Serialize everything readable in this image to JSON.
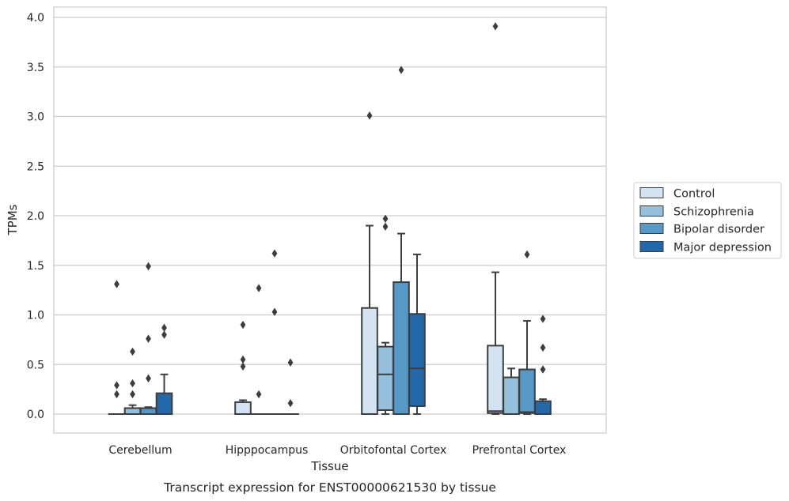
{
  "caption": "Transcript expression for ENST00000621530 by tissue",
  "chart_data": {
    "type": "box",
    "xlabel": "Tissue",
    "ylabel": "TPMs",
    "ylim": [
      -0.19,
      4.11
    ],
    "yticks": [
      "0.0",
      "0.5",
      "1.0",
      "1.5",
      "2.0",
      "2.5",
      "3.0",
      "3.5",
      "4.0"
    ],
    "categories": [
      "Cerebellum",
      "Hipppocampus",
      "Orbitofontal Cortex",
      "Prefrontal Cortex"
    ],
    "grid": "horizontal",
    "legend_position": "right",
    "series": [
      {
        "name": "Control",
        "color": "#d3e3f1",
        "boxes": [
          {
            "whislo": 0,
            "q1": 0,
            "med": 0,
            "q3": 0,
            "whishi": 0,
            "fliers": [
              1.31,
              0.29,
              0.2
            ]
          },
          {
            "whislo": 0,
            "q1": 0,
            "med": 0,
            "q3": 0.12,
            "whishi": 0.14,
            "fliers": [
              0.9,
              0.55,
              0.48
            ]
          },
          {
            "whislo": 0,
            "q1": 0,
            "med": 0,
            "q3": 1.07,
            "whishi": 1.9,
            "fliers": [
              3.01
            ]
          },
          {
            "whislo": 0,
            "q1": 0.01,
            "med": 0.03,
            "q3": 0.69,
            "whishi": 1.43,
            "fliers": [
              3.91
            ]
          }
        ]
      },
      {
        "name": "Schizophrenia",
        "color": "#94c0dd",
        "boxes": [
          {
            "whislo": 0,
            "q1": 0,
            "med": 0,
            "q3": 0.06,
            "whishi": 0.09,
            "fliers": [
              0.63,
              0.31,
              0.2
            ]
          },
          {
            "whislo": 0,
            "q1": 0,
            "med": 0,
            "q3": 0,
            "whishi": 0,
            "fliers": [
              1.27,
              0.2
            ]
          },
          {
            "whislo": 0,
            "q1": 0.04,
            "med": 0.4,
            "q3": 0.68,
            "whishi": 0.72,
            "fliers": [
              1.97,
              1.89
            ]
          },
          {
            "whislo": 0,
            "q1": 0,
            "med": 0,
            "q3": 0.37,
            "whishi": 0.46,
            "fliers": []
          }
        ]
      },
      {
        "name": "Bipolar disorder",
        "color": "#5698c6",
        "boxes": [
          {
            "whislo": 0,
            "q1": 0,
            "med": 0,
            "q3": 0.06,
            "whishi": 0.07,
            "fliers": [
              1.49,
              0.76,
              0.36
            ]
          },
          {
            "whislo": 0,
            "q1": 0,
            "med": 0,
            "q3": 0,
            "whishi": 0,
            "fliers": [
              1.62,
              1.03
            ]
          },
          {
            "whislo": 0,
            "q1": 0,
            "med": 0,
            "q3": 1.33,
            "whishi": 1.82,
            "fliers": [
              3.47
            ]
          },
          {
            "whislo": 0,
            "q1": 0.01,
            "med": 0.02,
            "q3": 0.45,
            "whishi": 0.94,
            "fliers": [
              1.61
            ]
          }
        ]
      },
      {
        "name": "Major depression",
        "color": "#2369a9",
        "boxes": [
          {
            "whislo": 0,
            "q1": 0,
            "med": 0,
            "q3": 0.21,
            "whishi": 0.4,
            "fliers": [
              0.87,
              0.8
            ]
          },
          {
            "whislo": 0,
            "q1": 0,
            "med": 0,
            "q3": 0,
            "whishi": 0,
            "fliers": [
              0.52,
              0.11
            ]
          },
          {
            "whislo": 0,
            "q1": 0.08,
            "med": 0.46,
            "q3": 1.01,
            "whishi": 1.61,
            "fliers": []
          },
          {
            "whislo": 0,
            "q1": 0,
            "med": 0,
            "q3": 0.13,
            "whishi": 0.15,
            "fliers": [
              0.96,
              0.67,
              0.45
            ]
          }
        ]
      }
    ]
  }
}
